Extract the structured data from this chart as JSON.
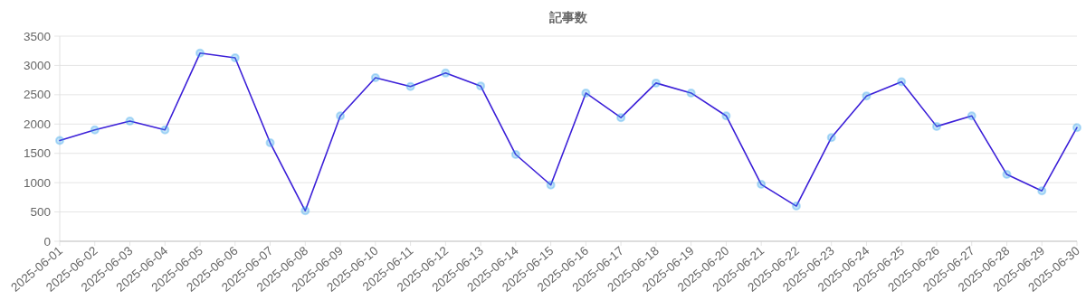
{
  "chart_data": {
    "type": "line",
    "title": "記事数",
    "categories": [
      "2025-06-01",
      "2025-06-02",
      "2025-06-03",
      "2025-06-04",
      "2025-06-05",
      "2025-06-06",
      "2025-06-07",
      "2025-06-08",
      "2025-06-09",
      "2025-06-10",
      "2025-06-11",
      "2025-06-12",
      "2025-06-13",
      "2025-06-14",
      "2025-06-15",
      "2025-06-16",
      "2025-06-17",
      "2025-06-18",
      "2025-06-19",
      "2025-06-20",
      "2025-06-21",
      "2025-06-22",
      "2025-06-23",
      "2025-06-24",
      "2025-06-25",
      "2025-06-26",
      "2025-06-27",
      "2025-06-28",
      "2025-06-29",
      "2025-06-30"
    ],
    "series": [
      {
        "color": "#3b1fd8",
        "values": [
          1720,
          1900,
          2050,
          1900,
          3210,
          3130,
          1680,
          520,
          2140,
          2790,
          2640,
          2870,
          2650,
          1480,
          960,
          2530,
          2110,
          2700,
          2530,
          2140,
          970,
          600,
          1770,
          2480,
          2720,
          1960,
          2140,
          1140,
          860,
          1940
        ]
      }
    ],
    "ylim": [
      0,
      3500
    ],
    "yticks": [
      0,
      500,
      1000,
      1500,
      2000,
      2500,
      3000,
      3500
    ],
    "grid": "y",
    "marker": "circle"
  }
}
